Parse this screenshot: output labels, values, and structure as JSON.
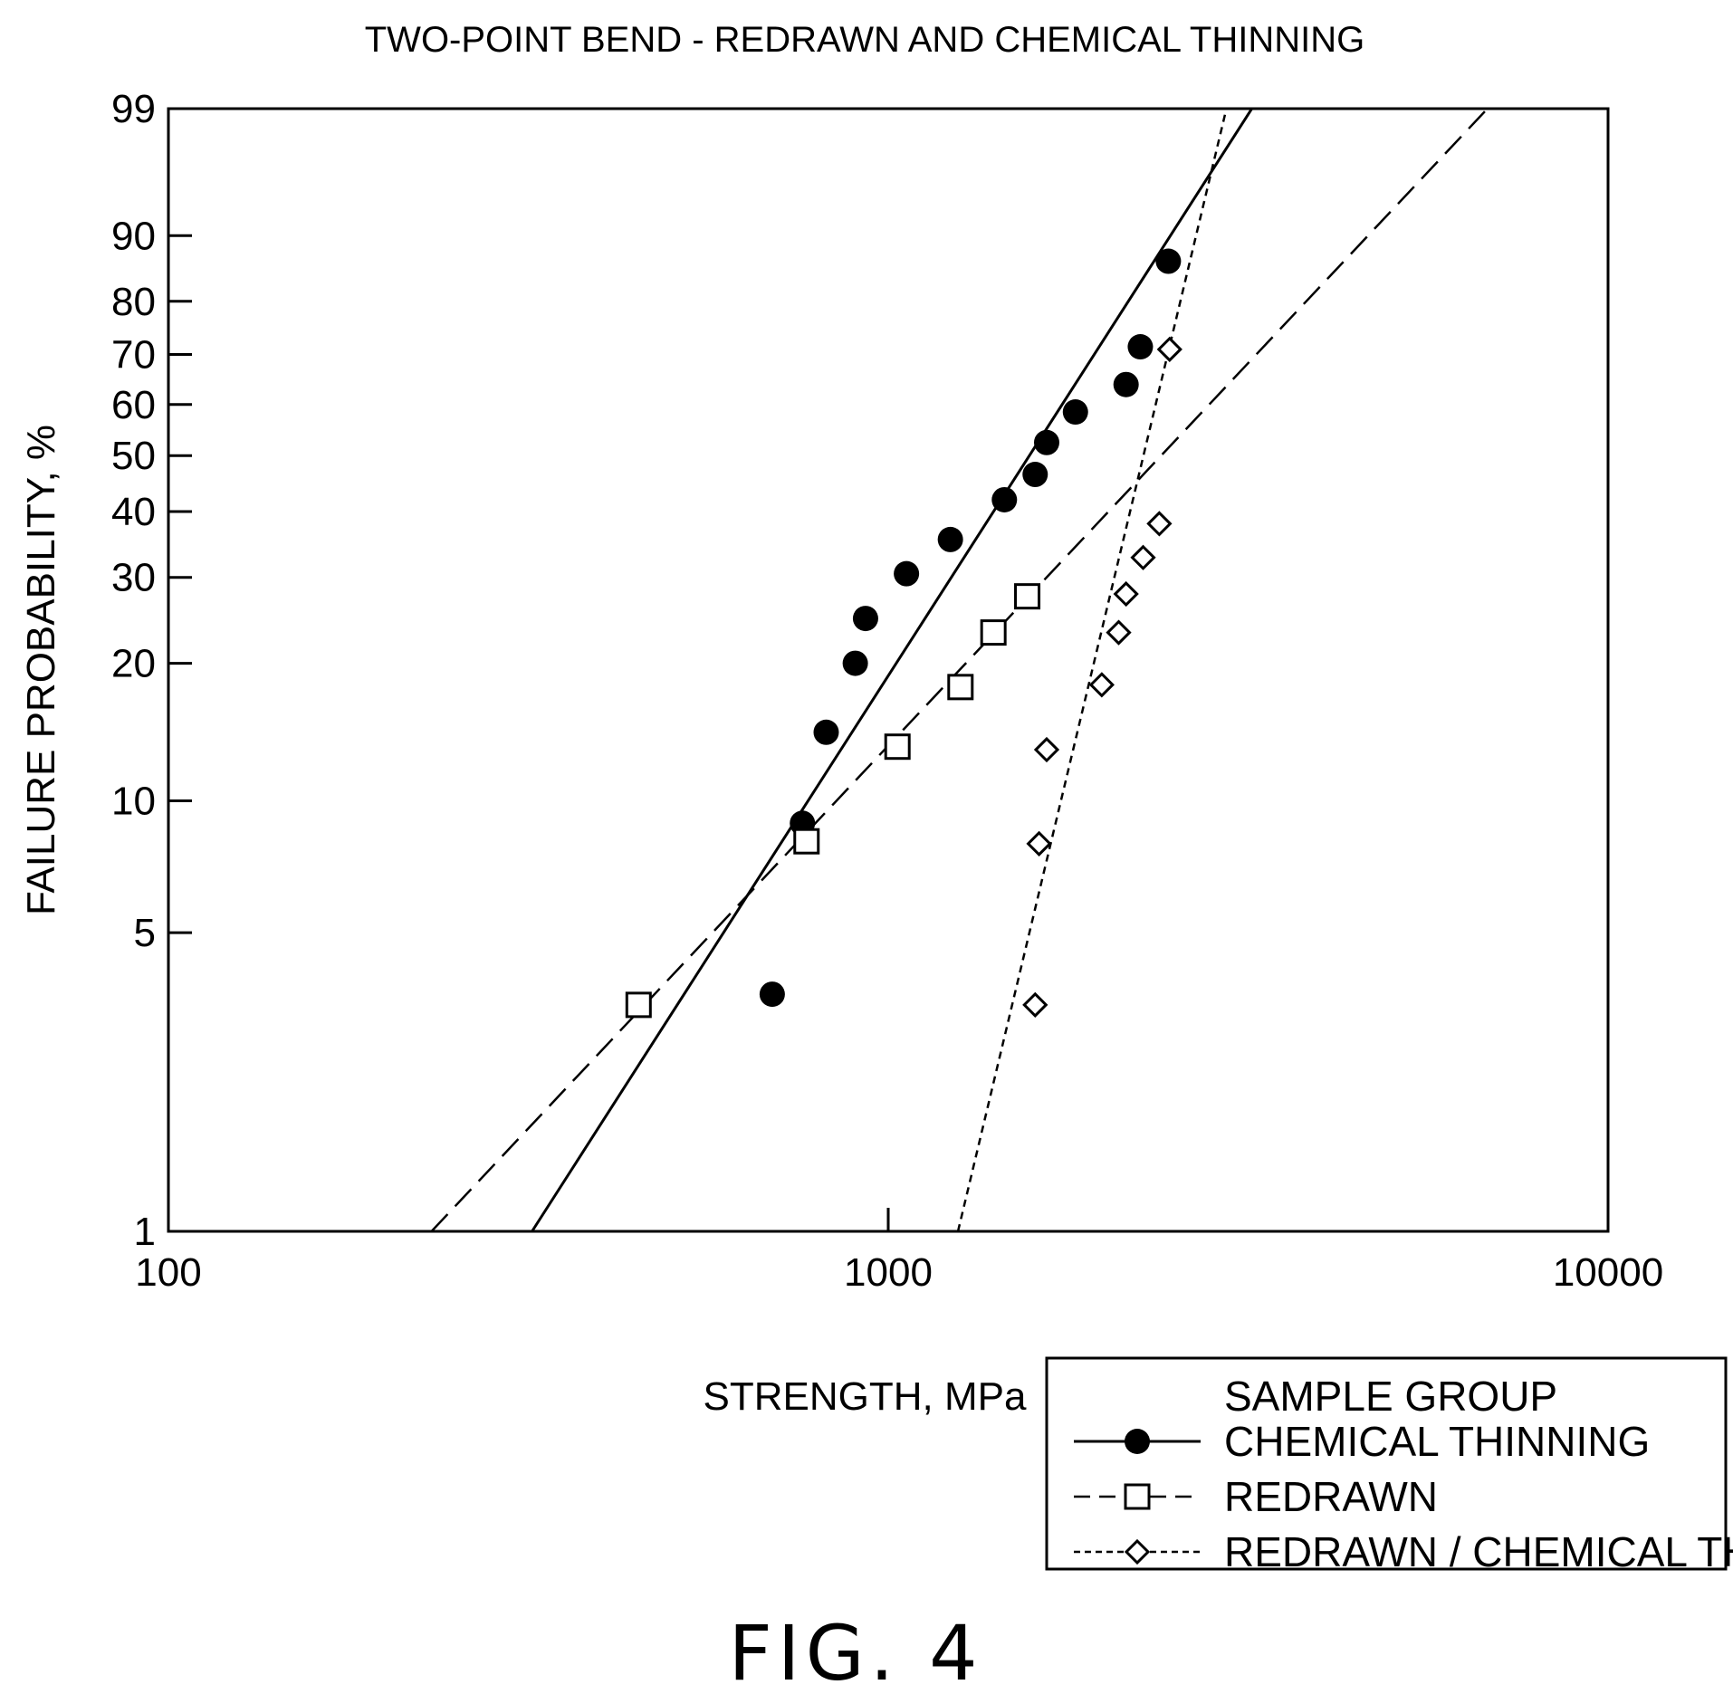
{
  "chart_data": {
    "type": "scatter",
    "title": "TWO-POINT BEND - REDRAWN AND CHEMICAL THINNING",
    "xlabel": "STRENGTH, MPa",
    "ylabel": "FAILURE PROBABILITY, %",
    "x_scale": "log",
    "y_scale": "weibull",
    "xlim": [
      100,
      10000
    ],
    "ylim": [
      1,
      99
    ],
    "x_ticks": [
      "100",
      "1000",
      "10000"
    ],
    "y_ticks": [
      "99",
      "90",
      "80",
      "70",
      "60",
      "50",
      "40",
      "30",
      "20",
      "10",
      "5",
      "1"
    ],
    "grid": false,
    "legend": {
      "placement": "bottom-right, outside plot",
      "title": "SAMPLE GROUP",
      "entries": [
        "CHEMICAL THINNING",
        "REDRAWN",
        "REDRAWN / CHEMICAL THINNING"
      ]
    },
    "series": [
      {
        "name": "CHEMICAL THINNING",
        "marker": "filled-circle",
        "line": "solid",
        "points": [
          {
            "x": 690,
            "y": 3.6
          },
          {
            "x": 760,
            "y": 8.9
          },
          {
            "x": 820,
            "y": 14.2
          },
          {
            "x": 900,
            "y": 20.0
          },
          {
            "x": 930,
            "y": 24.8
          },
          {
            "x": 1060,
            "y": 30.5
          },
          {
            "x": 1220,
            "y": 35.5
          },
          {
            "x": 1450,
            "y": 42.0
          },
          {
            "x": 1600,
            "y": 46.5
          },
          {
            "x": 1660,
            "y": 52.5
          },
          {
            "x": 1820,
            "y": 58.5
          },
          {
            "x": 2140,
            "y": 64.0
          },
          {
            "x": 2240,
            "y": 71.5
          },
          {
            "x": 2450,
            "y": 86.5
          }
        ],
        "fit_line": [
          {
            "x": 320,
            "y": 1
          },
          {
            "x": 3200,
            "y": 99
          }
        ]
      },
      {
        "name": "REDRAWN",
        "marker": "open-square",
        "line": "dashed",
        "points": [
          {
            "x": 450,
            "y": 3.4
          },
          {
            "x": 770,
            "y": 8.1
          },
          {
            "x": 1030,
            "y": 13.2
          },
          {
            "x": 1260,
            "y": 17.8
          },
          {
            "x": 1400,
            "y": 23.2
          },
          {
            "x": 1560,
            "y": 27.5
          }
        ],
        "fit_line": [
          {
            "x": 232,
            "y": 1
          },
          {
            "x": 6800,
            "y": 99
          }
        ]
      },
      {
        "name": "REDRAWN / CHEMICAL THINNING",
        "marker": "open-diamond",
        "line": "dotted",
        "points": [
          {
            "x": 1600,
            "y": 3.4
          },
          {
            "x": 1620,
            "y": 8.0
          },
          {
            "x": 1660,
            "y": 13.0
          },
          {
            "x": 1980,
            "y": 18.0
          },
          {
            "x": 2090,
            "y": 23.2
          },
          {
            "x": 2140,
            "y": 27.8
          },
          {
            "x": 2260,
            "y": 32.8
          },
          {
            "x": 2380,
            "y": 38.0
          },
          {
            "x": 2460,
            "y": 71.0
          }
        ],
        "fit_line": [
          {
            "x": 1250,
            "y": 1
          },
          {
            "x": 2950,
            "y": 99
          }
        ]
      }
    ]
  },
  "figure_label": "FIG. 4"
}
